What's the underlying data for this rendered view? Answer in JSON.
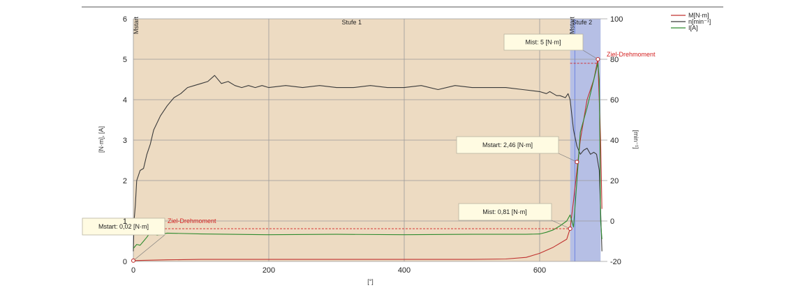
{
  "colors": {
    "torque": "#c0312f",
    "speed": "#3a3a3a",
    "current": "#2e8b2e",
    "stage1_bg": "#ecd9bf",
    "stage2_bg": "#a9b4e0",
    "ziel": "#d42020"
  },
  "chart_data": {
    "type": "line",
    "xlabel": "[°]",
    "ylabel_left": "[N·m], [A]",
    "ylabel_right": "[min⁻¹]",
    "xlim": [
      0,
      700
    ],
    "ylim_left": [
      0,
      6
    ],
    "ylim_right": [
      -20,
      100
    ],
    "x_ticks": [
      "0",
      "200",
      "400",
      "600"
    ],
    "y_left_ticks": [
      "0",
      "1",
      "2",
      "3",
      "4",
      "5",
      "6"
    ],
    "y_right_ticks": [
      "-20",
      "0",
      "20",
      "40",
      "60",
      "80",
      "100"
    ],
    "grid": true,
    "legend_position": "top-right",
    "stages": [
      {
        "label": "Stufe 1",
        "x_start": 0,
        "x_end": 645
      },
      {
        "label": "Stufe 2",
        "x_start": 645,
        "x_end": 690
      }
    ],
    "mstart_labels": [
      {
        "label": "Mstart",
        "x": 0
      },
      {
        "label": "Mstart",
        "x": 648
      }
    ],
    "series": [
      {
        "name": "M[N·m]",
        "axis": "left",
        "color_key": "torque",
        "x": [
          0,
          50,
          100,
          200,
          300,
          400,
          500,
          550,
          580,
          600,
          620,
          640,
          645,
          650,
          660,
          670,
          680,
          686,
          690,
          692
        ],
        "y": [
          0.02,
          0.04,
          0.05,
          0.05,
          0.05,
          0.05,
          0.05,
          0.06,
          0.1,
          0.2,
          0.35,
          0.55,
          0.81,
          1.5,
          3.0,
          4.0,
          4.5,
          5.0,
          3.0,
          1.3
        ]
      },
      {
        "name": "n[min⁻¹]",
        "axis": "right",
        "color_key": "speed",
        "x": [
          0,
          1,
          3,
          5,
          10,
          15,
          20,
          25,
          30,
          40,
          50,
          60,
          70,
          80,
          90,
          100,
          110,
          120,
          130,
          140,
          150,
          160,
          170,
          180,
          190,
          200,
          225,
          250,
          275,
          300,
          325,
          350,
          375,
          400,
          425,
          450,
          475,
          500,
          525,
          550,
          575,
          600,
          610,
          615,
          620,
          625,
          630,
          638,
          642,
          645,
          650,
          655,
          660,
          665,
          670,
          675,
          680,
          684,
          688,
          690,
          692
        ],
        "y": [
          -15,
          0,
          8,
          20,
          25,
          26,
          33,
          38,
          45,
          52,
          57,
          61,
          63,
          66,
          67,
          68,
          69,
          72,
          68,
          69,
          67,
          66,
          67,
          66,
          67,
          66,
          67,
          66,
          67,
          66,
          66,
          67,
          66,
          66,
          67,
          65,
          67,
          66,
          66,
          66,
          65,
          64,
          63,
          64,
          63,
          62,
          62,
          61,
          63,
          60,
          45,
          37,
          33,
          35,
          36,
          33,
          34,
          33,
          25,
          5,
          -15
        ]
      },
      {
        "name": "I[A]",
        "axis": "left",
        "color_key": "current",
        "x": [
          0,
          5,
          10,
          15,
          20,
          25,
          35,
          50,
          100,
          200,
          300,
          400,
          500,
          550,
          580,
          600,
          610,
          620,
          630,
          640,
          645,
          650,
          655,
          660,
          670,
          680,
          686,
          688,
          690,
          692
        ],
        "y": [
          0.32,
          0.42,
          0.4,
          0.5,
          0.6,
          0.72,
          0.65,
          0.7,
          0.68,
          0.66,
          0.67,
          0.66,
          0.67,
          0.67,
          0.67,
          0.68,
          0.72,
          0.78,
          0.88,
          1.0,
          1.15,
          0.85,
          2.0,
          3.2,
          3.8,
          4.5,
          4.9,
          4.5,
          1.0,
          0.55
        ]
      }
    ],
    "annotations": [
      {
        "text": "Mstart: 0,02 [N·m]",
        "x": 0,
        "y": 0.02,
        "ziel": "Ziel-Drehmoment"
      },
      {
        "text": "Mist: 0,81 [N·m]",
        "x": 645,
        "y": 0.81
      },
      {
        "text": "Mstart: 2,46 [N·m]",
        "x": 655,
        "y": 2.46
      },
      {
        "text": "Mist: 5 [N·m]",
        "x": 686,
        "y": 5.0,
        "ziel": "Ziel-Drehmoment"
      }
    ]
  }
}
